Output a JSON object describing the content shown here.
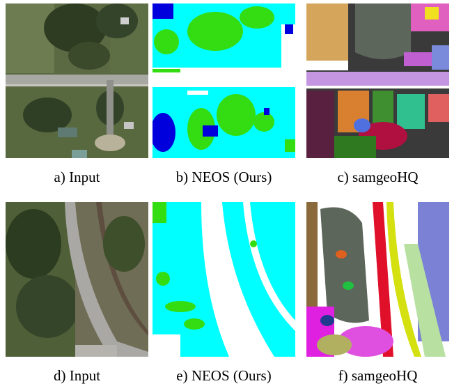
{
  "figure": {
    "panels": [
      {
        "caption": "a) Input"
      },
      {
        "caption": "b) NEOS (Ours)"
      },
      {
        "caption": "c) samgeoHQ"
      },
      {
        "caption": "d) Input"
      },
      {
        "caption": "e) NEOS (Ours)"
      },
      {
        "caption": "f) samgeoHQ"
      }
    ]
  }
}
